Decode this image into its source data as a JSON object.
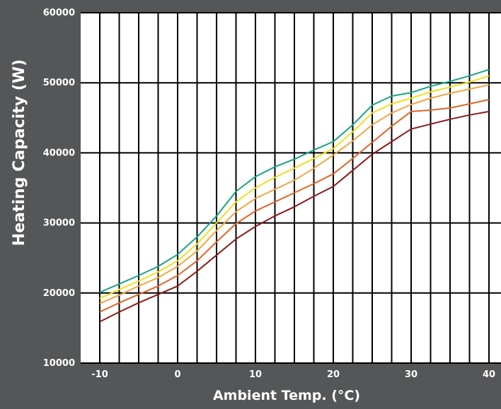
{
  "chart_data": {
    "type": "line",
    "title": "",
    "xlabel": "Ambient Temp. (°C)",
    "ylabel": "Heating Capacity (W)",
    "xlim": [
      -10,
      40
    ],
    "ylim": [
      10000,
      60000
    ],
    "x_ticks": [
      -10,
      0,
      10,
      20,
      30,
      40
    ],
    "y_ticks": [
      10000,
      20000,
      30000,
      40000,
      50000,
      60000
    ],
    "grid": true,
    "legend": "none",
    "colors": {
      "background": "#555657",
      "plot_background": "#ffffff",
      "grid": "#000000",
      "tick_label": "#ffffff",
      "axis_label": "#ffffff"
    },
    "x": [
      -10,
      -7.5,
      -5,
      -2.5,
      0,
      2.5,
      5,
      7.5,
      10,
      12.5,
      15,
      17.5,
      20,
      22.5,
      25,
      27.5,
      30,
      32.5,
      35,
      37.5,
      40
    ],
    "series": [
      {
        "color": "#1aa385",
        "values": [
          20100,
          21300,
          22500,
          23800,
          25500,
          28000,
          31000,
          34500,
          36600,
          38000,
          39100,
          40400,
          41600,
          44000,
          46800,
          48100,
          48600,
          49500,
          50200,
          51000,
          51900
        ]
      },
      {
        "color": "#f0e020",
        "values": [
          19200,
          20500,
          21700,
          23000,
          24600,
          27000,
          30000,
          33000,
          35000,
          36500,
          37800,
          39200,
          40600,
          43000,
          45700,
          47000,
          47800,
          48700,
          49400,
          50100,
          51000
        ]
      },
      {
        "color": "#f2a640",
        "values": [
          18500,
          19700,
          21000,
          22200,
          23800,
          26000,
          28900,
          31600,
          33500,
          34800,
          36100,
          37800,
          39700,
          41700,
          44000,
          45700,
          46900,
          47800,
          48500,
          49100,
          49700
        ]
      },
      {
        "color": "#e06628",
        "values": [
          17300,
          18600,
          19800,
          21000,
          22500,
          24600,
          27300,
          29900,
          31700,
          33000,
          34300,
          35600,
          37000,
          39200,
          41500,
          43800,
          45900,
          46100,
          46400,
          47000,
          47600
        ]
      },
      {
        "color": "#8b1a1a",
        "values": [
          15900,
          17300,
          18600,
          19800,
          21000,
          23100,
          25400,
          27700,
          29500,
          31000,
          32300,
          33800,
          35200,
          37500,
          39800,
          41600,
          43400,
          44100,
          44800,
          45400,
          45900
        ]
      }
    ]
  }
}
